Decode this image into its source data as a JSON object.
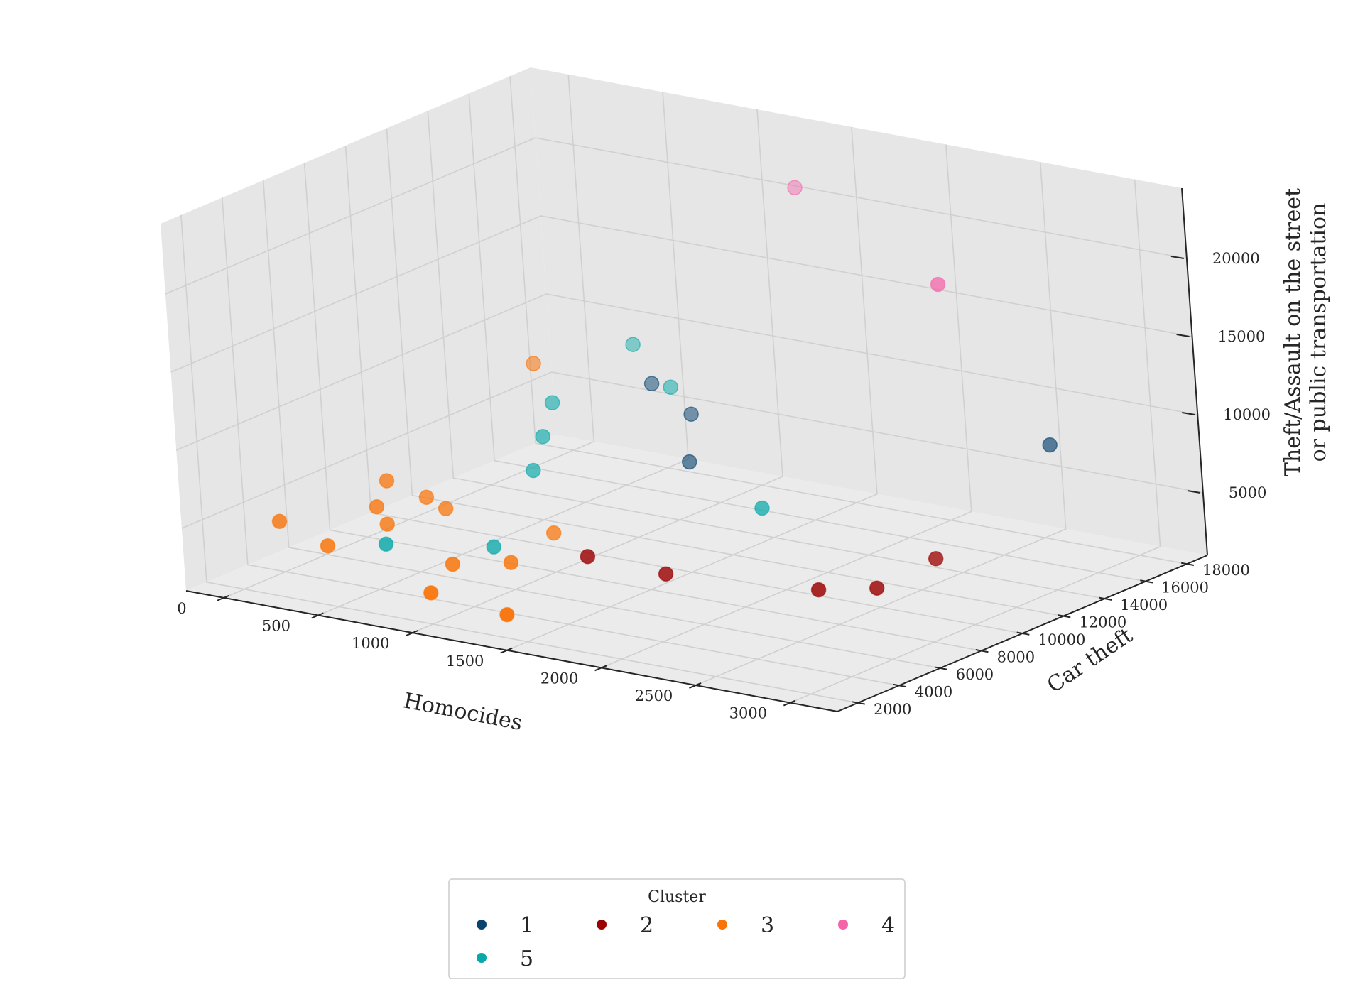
{
  "chart_data": {
    "type": "scatter",
    "projection": "3d",
    "xlabel": "Homocides",
    "ylabel": "Car theft",
    "zlabel": [
      "Theft/Assault on the street",
      "or public transportation"
    ],
    "xticks": [
      0,
      500,
      1000,
      1500,
      2000,
      2500,
      3000
    ],
    "yticks": [
      2000,
      4000,
      6000,
      8000,
      10000,
      12000,
      14000,
      16000,
      18000
    ],
    "zticks": [
      5000,
      10000,
      15000,
      20000
    ],
    "xlim": [
      -200,
      3250
    ],
    "ylim": [
      1000,
      19000
    ],
    "zlim": [
      1000,
      24500
    ],
    "grid": true,
    "legend": {
      "title": "Cluster",
      "placement": "bottom-center",
      "entries": [
        {
          "label": "1",
          "color": "#08426e"
        },
        {
          "label": "2",
          "color": "#9b0202"
        },
        {
          "label": "3",
          "color": "#f97307"
        },
        {
          "label": "4",
          "color": "#f564a9"
        },
        {
          "label": "5",
          "color": "#08a8a8"
        }
      ]
    },
    "series": [
      {
        "name": "1",
        "color": "#08426e",
        "points": [
          {
            "x": 900,
            "y": 14000,
            "z": 9500
          },
          {
            "x": 1100,
            "y": 14000,
            "z": 8000
          },
          {
            "x": 1300,
            "y": 12000,
            "z": 6500
          },
          {
            "x": 2900,
            "y": 15000,
            "z": 9500
          }
        ]
      },
      {
        "name": "2",
        "color": "#9b0202",
        "points": [
          {
            "x": 1400,
            "y": 6000,
            "z": 4000
          },
          {
            "x": 1700,
            "y": 7000,
            "z": 3000
          },
          {
            "x": 2400,
            "y": 8000,
            "z": 3000
          },
          {
            "x": 2600,
            "y": 9000,
            "z": 3000
          },
          {
            "x": 2700,
            "y": 11000,
            "z": 4000
          }
        ]
      },
      {
        "name": "3",
        "color": "#f97307",
        "points": [
          {
            "x": 100,
            "y": 3000,
            "z": 5000
          },
          {
            "x": 350,
            "y": 6000,
            "z": 6500
          },
          {
            "x": 400,
            "y": 5000,
            "z": 5500
          },
          {
            "x": 450,
            "y": 5000,
            "z": 4500
          },
          {
            "x": 500,
            "y": 6500,
            "z": 5500
          },
          {
            "x": 600,
            "y": 6500,
            "z": 5000
          },
          {
            "x": 500,
            "y": 12000,
            "z": 11000
          },
          {
            "x": 350,
            "y": 3000,
            "z": 4000
          },
          {
            "x": 900,
            "y": 4000,
            "z": 3500
          },
          {
            "x": 1100,
            "y": 5000,
            "z": 3500
          },
          {
            "x": 1000,
            "y": 2000,
            "z": 3000
          },
          {
            "x": 1400,
            "y": 2000,
            "z": 2500
          },
          {
            "x": 1000,
            "y": 8000,
            "z": 3500
          }
        ]
      },
      {
        "name": "4",
        "color": "#f564a9",
        "points": [
          {
            "x": 1400,
            "y": 17000,
            "z": 21500
          },
          {
            "x": 2700,
            "y": 12000,
            "z": 21000
          }
        ]
      },
      {
        "name": "5",
        "color": "#08a8a8",
        "points": [
          {
            "x": 700,
            "y": 11000,
            "z": 9500
          },
          {
            "x": 700,
            "y": 15000,
            "z": 11000
          },
          {
            "x": 750,
            "y": 10000,
            "z": 8000
          },
          {
            "x": 800,
            "y": 9000,
            "z": 6500
          },
          {
            "x": 550,
            "y": 4000,
            "z": 4000
          },
          {
            "x": 900,
            "y": 6000,
            "z": 3500
          },
          {
            "x": 1000,
            "y": 14000,
            "z": 9500
          },
          {
            "x": 1900,
            "y": 10000,
            "z": 6000
          }
        ]
      }
    ]
  }
}
